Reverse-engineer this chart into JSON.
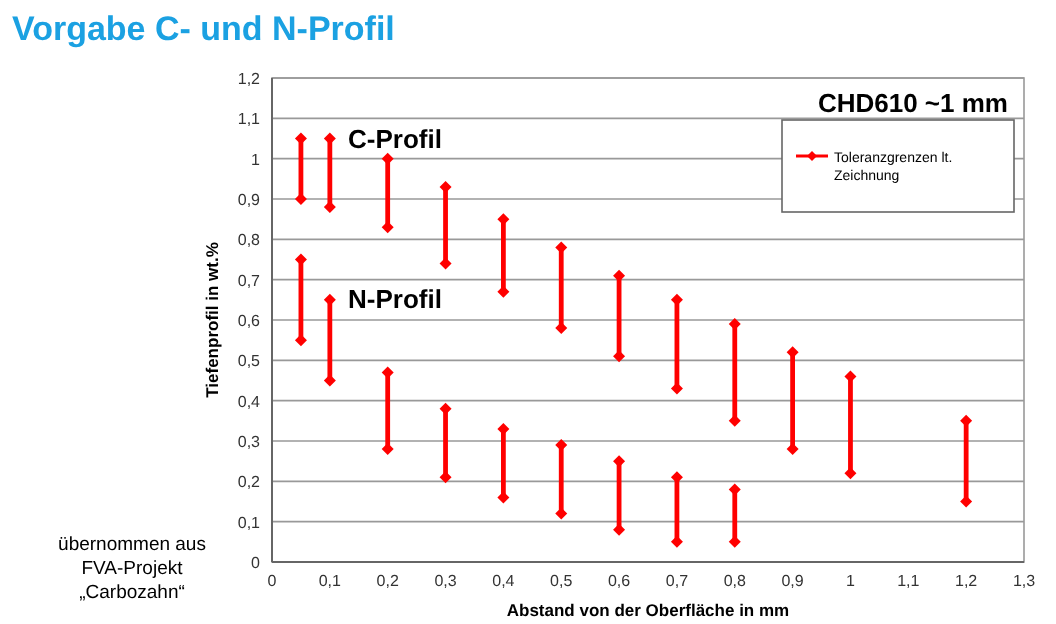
{
  "chart_data": {
    "type": "line",
    "title": "Vorgabe C- und N-Profil",
    "xlabel": "Abstand von der Oberfläche in mm",
    "ylabel": "Tiefenprofil in wt.%",
    "annotations": [
      "C-Profil",
      "N-Profil",
      "CHD610 ~1 mm",
      "übernommen aus\nFVA-Projekt\n„Carbozahn“"
    ],
    "series": [
      {
        "name": "Toleranzgrenzen lt. Zeichnung",
        "color": "#ff0000",
        "x": [
          0.05,
          0.05
        ],
        "values": [
          0.9,
          1.05
        ]
      },
      {
        "color": "#ff0000",
        "x": [
          0.1,
          0.1
        ],
        "values": [
          0.88,
          1.05
        ]
      },
      {
        "color": "#ff0000",
        "x": [
          0.2,
          0.2
        ],
        "values": [
          0.83,
          1.0
        ]
      },
      {
        "color": "#ff0000",
        "x": [
          0.3,
          0.3
        ],
        "values": [
          0.74,
          0.93
        ]
      },
      {
        "color": "#ff0000",
        "x": [
          0.4,
          0.4
        ],
        "values": [
          0.67,
          0.85
        ]
      },
      {
        "color": "#ff0000",
        "x": [
          0.5,
          0.5
        ],
        "values": [
          0.58,
          0.78
        ]
      },
      {
        "color": "#ff0000",
        "x": [
          0.6,
          0.6
        ],
        "values": [
          0.51,
          0.71
        ]
      },
      {
        "color": "#ff0000",
        "x": [
          0.7,
          0.7
        ],
        "values": [
          0.43,
          0.65
        ]
      },
      {
        "color": "#ff0000",
        "x": [
          0.8,
          0.8
        ],
        "values": [
          0.35,
          0.59
        ]
      },
      {
        "color": "#ff0000",
        "x": [
          0.9,
          0.9
        ],
        "values": [
          0.28,
          0.52
        ]
      },
      {
        "color": "#ff0000",
        "x": [
          1.0,
          1.0
        ],
        "values": [
          0.22,
          0.46
        ]
      },
      {
        "color": "#ff0000",
        "x": [
          1.2,
          1.2
        ],
        "values": [
          0.15,
          0.35
        ]
      },
      {
        "color": "#ff0000",
        "x": [
          0.05,
          0.05
        ],
        "values": [
          0.55,
          0.75
        ]
      },
      {
        "color": "#ff0000",
        "x": [
          0.1,
          0.1
        ],
        "values": [
          0.45,
          0.65
        ]
      },
      {
        "color": "#ff0000",
        "x": [
          0.2,
          0.2
        ],
        "values": [
          0.28,
          0.47
        ]
      },
      {
        "color": "#ff0000",
        "x": [
          0.3,
          0.3
        ],
        "values": [
          0.21,
          0.38
        ]
      },
      {
        "color": "#ff0000",
        "x": [
          0.4,
          0.4
        ],
        "values": [
          0.16,
          0.33
        ]
      },
      {
        "color": "#ff0000",
        "x": [
          0.5,
          0.5
        ],
        "values": [
          0.12,
          0.29
        ]
      },
      {
        "color": "#ff0000",
        "x": [
          0.6,
          0.6
        ],
        "values": [
          0.08,
          0.25
        ]
      },
      {
        "color": "#ff0000",
        "x": [
          0.7,
          0.7
        ],
        "values": [
          0.05,
          0.21
        ]
      },
      {
        "color": "#ff0000",
        "x": [
          0.8,
          0.8
        ],
        "values": [
          0.05,
          0.18
        ]
      }
    ],
    "xlim": [
      0,
      1.3
    ],
    "xticks": [
      {
        "value": 0,
        "label": "0"
      },
      {
        "value": 0.1,
        "label": "0,1"
      },
      {
        "value": 0.2,
        "label": "0,2"
      },
      {
        "value": 0.3,
        "label": "0,3"
      },
      {
        "value": 0.4,
        "label": "0,4"
      },
      {
        "value": 0.5,
        "label": "0,5"
      },
      {
        "value": 0.6,
        "label": "0,6"
      },
      {
        "value": 0.7,
        "label": "0,7"
      },
      {
        "value": 0.8,
        "label": "0,8"
      },
      {
        "value": 0.9,
        "label": "0,9"
      },
      {
        "value": 1,
        "label": "1"
      },
      {
        "value": 1.1,
        "label": "1,1"
      },
      {
        "value": 1.2,
        "label": "1,2"
      },
      {
        "value": 1.3,
        "label": "1,3"
      }
    ],
    "ylim": [
      0,
      1.2
    ],
    "yticks": [
      {
        "value": 0,
        "label": "0"
      },
      {
        "value": 0.1,
        "label": "0,1"
      },
      {
        "value": 0.2,
        "label": "0,2"
      },
      {
        "value": 0.3,
        "label": "0,3"
      },
      {
        "value": 0.4,
        "label": "0,4"
      },
      {
        "value": 0.5,
        "label": "0,5"
      },
      {
        "value": 0.6,
        "label": "0,6"
      },
      {
        "value": 0.7,
        "label": "0,7"
      },
      {
        "value": 0.8,
        "label": "0,8"
      },
      {
        "value": 0.9,
        "label": "0,9"
      },
      {
        "value": 1,
        "label": "1"
      },
      {
        "value": 1.1,
        "label": "1,1"
      },
      {
        "value": 1.2,
        "label": "1,2"
      }
    ],
    "grid": "y",
    "legend": "top right",
    "marker": "diamond"
  }
}
